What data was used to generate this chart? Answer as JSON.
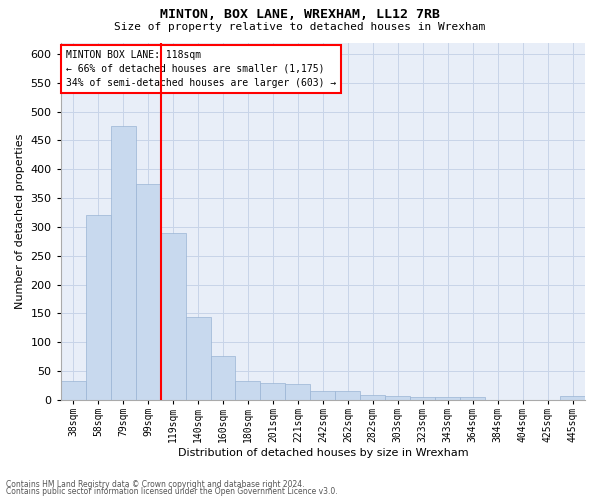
{
  "title": "MINTON, BOX LANE, WREXHAM, LL12 7RB",
  "subtitle": "Size of property relative to detached houses in Wrexham",
  "xlabel": "Distribution of detached houses by size in Wrexham",
  "ylabel": "Number of detached properties",
  "categories": [
    "38sqm",
    "58sqm",
    "79sqm",
    "99sqm",
    "119sqm",
    "140sqm",
    "160sqm",
    "180sqm",
    "201sqm",
    "221sqm",
    "242sqm",
    "262sqm",
    "282sqm",
    "303sqm",
    "323sqm",
    "343sqm",
    "364sqm",
    "384sqm",
    "404sqm",
    "425sqm",
    "445sqm"
  ],
  "values": [
    32,
    320,
    475,
    375,
    290,
    143,
    76,
    32,
    29,
    28,
    16,
    15,
    8,
    6,
    5,
    5,
    5,
    0,
    0,
    0,
    6
  ],
  "bar_color": "#c8d9ee",
  "bar_edge_color": "#9ab4d4",
  "property_label": "MINTON BOX LANE: 118sqm",
  "annotation_line1": "← 66% of detached houses are smaller (1,175)",
  "annotation_line2": "34% of semi-detached houses are larger (603) →",
  "annotation_box_color": "white",
  "annotation_box_edge_color": "red",
  "vline_color": "red",
  "vline_x_index": 4,
  "ylim": [
    0,
    620
  ],
  "yticks": [
    0,
    50,
    100,
    150,
    200,
    250,
    300,
    350,
    400,
    450,
    500,
    550,
    600
  ],
  "grid_color": "#c8d4e8",
  "background_color": "#e8eef8",
  "footnote1": "Contains HM Land Registry data © Crown copyright and database right 2024.",
  "footnote2": "Contains public sector information licensed under the Open Government Licence v3.0."
}
